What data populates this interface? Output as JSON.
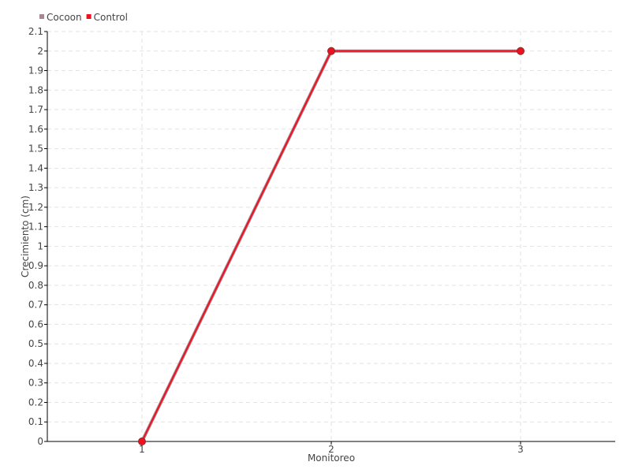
{
  "chart_data": {
    "type": "line",
    "title": "",
    "xlabel": "Monitoreo",
    "ylabel": "Crecimiento (cm)",
    "x": [
      1,
      2,
      3
    ],
    "xlim": [
      0.5,
      3.5
    ],
    "ylim": [
      0,
      2.1
    ],
    "yticks": [
      0,
      0.1,
      0.2,
      0.3,
      0.4,
      0.5,
      0.6,
      0.7,
      0.8,
      0.9,
      1,
      1.1,
      1.2,
      1.3,
      1.4,
      1.5,
      1.6,
      1.7,
      1.8,
      1.9,
      2,
      2.1
    ],
    "grid": true,
    "legend_position": "top-left",
    "series": [
      {
        "name": "Cocoon",
        "values": [
          0,
          2,
          2
        ],
        "color": "#a8878f"
      },
      {
        "name": "Control",
        "values": [
          0,
          2,
          2
        ],
        "color": "#ee1122"
      }
    ]
  }
}
